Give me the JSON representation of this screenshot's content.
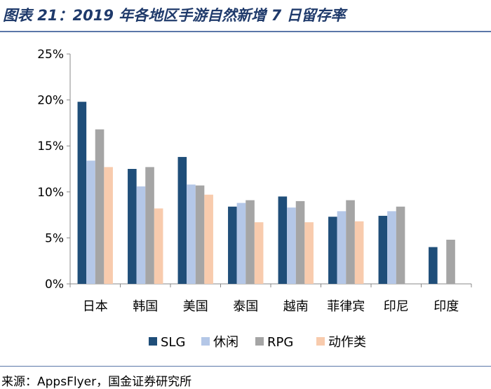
{
  "header": {
    "title": "图表 21：2019 年各地区手游自然新增 7 日留存率"
  },
  "chart_data": {
    "type": "bar",
    "title": "图表 21：2019 年各地区手游自然新增 7 日留存率",
    "xlabel": "",
    "ylabel": "",
    "ylim": [
      0,
      25
    ],
    "y_ticks": [
      "0%",
      "5%",
      "10%",
      "15%",
      "20%",
      "25%"
    ],
    "y_tick_values": [
      0,
      5,
      10,
      15,
      20,
      25
    ],
    "grid": false,
    "legend_position": "bottom",
    "categories": [
      "日本",
      "韩国",
      "美国",
      "泰国",
      "越南",
      "菲律宾",
      "印尼",
      "印度"
    ],
    "series": [
      {
        "name": "SLG",
        "color": "#1f4e79",
        "values": [
          19.8,
          12.5,
          13.8,
          8.4,
          9.5,
          7.3,
          7.4,
          4.0
        ]
      },
      {
        "name": "休闲",
        "color": "#b4c7e7",
        "values": [
          13.4,
          10.6,
          10.8,
          8.8,
          8.3,
          7.9,
          7.9,
          null
        ]
      },
      {
        "name": "RPG",
        "color": "#a5a5a5",
        "values": [
          16.8,
          12.7,
          10.7,
          9.1,
          9.0,
          9.1,
          8.4,
          4.8
        ]
      },
      {
        "name": "动作类",
        "color": "#f8cbad",
        "values": [
          12.7,
          8.2,
          9.7,
          6.7,
          6.7,
          6.8,
          null,
          null
        ]
      }
    ]
  },
  "footer": {
    "source": "来源：AppsFlyer，国金证券研究所"
  }
}
